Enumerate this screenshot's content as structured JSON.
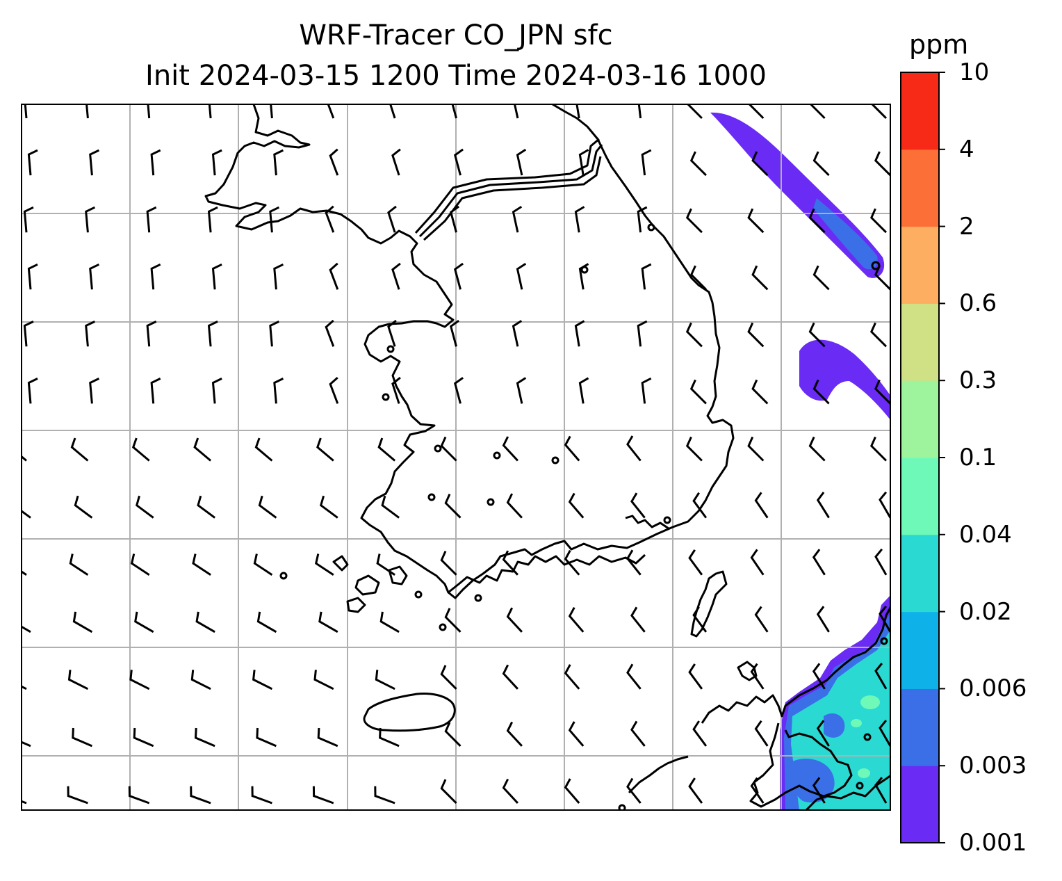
{
  "title": {
    "line1": "WRF-Tracer CO_JPN sfc",
    "line2": "Init 2024-03-15 1200 Time 2024-03-16 1000"
  },
  "colorbar": {
    "unit": "ppm",
    "ticks": [
      "0.001",
      "0.003",
      "0.006",
      "0.02",
      "0.04",
      "0.1",
      "0.3",
      "0.6",
      "2",
      "4",
      "10"
    ],
    "colors": [
      "#6a2bf5",
      "#3b6fe8",
      "#0fb2e8",
      "#2ad9d1",
      "#6ef9b9",
      "#9df49c",
      "#cfe085",
      "#fdae61",
      "#fc7038",
      "#f72a17"
    ]
  },
  "map": {
    "frame_color": "#000000",
    "gridline_color": "#b0b0b0",
    "coastline_color": "#000000",
    "wind_barb_color": "#000000"
  }
}
